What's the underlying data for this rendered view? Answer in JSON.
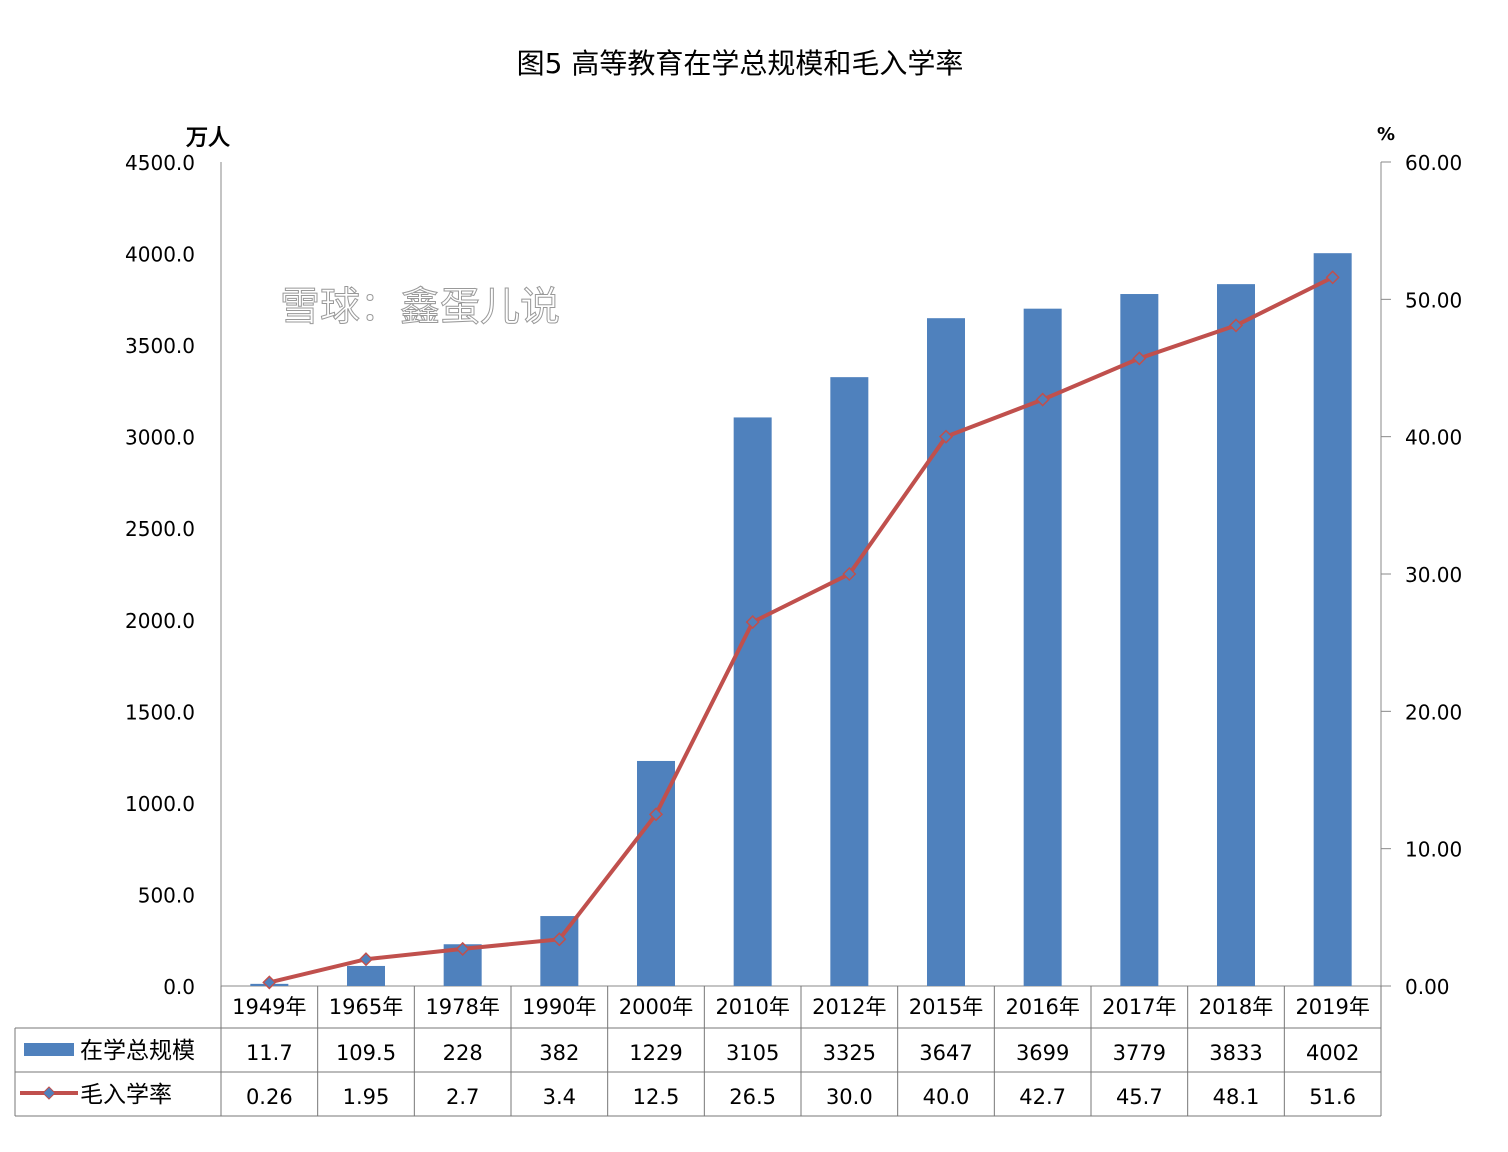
{
  "chart_data": {
    "type": "bar+line",
    "title": "图5  高等教育在学总规模和毛入学率",
    "left_axis": {
      "unit": "万人",
      "min": 0,
      "max": 4500,
      "step": 500,
      "ticks": [
        "0.0",
        "500.0",
        "1000.0",
        "1500.0",
        "2000.0",
        "2500.0",
        "3000.0",
        "3500.0",
        "4000.0",
        "4500.0"
      ]
    },
    "right_axis": {
      "unit": "%",
      "min": 0,
      "max": 60,
      "step": 10,
      "ticks": [
        "0.00",
        "10.00",
        "20.00",
        "30.00",
        "40.00",
        "50.00",
        "60.00"
      ]
    },
    "categories": [
      "1949年",
      "1965年",
      "1978年",
      "1990年",
      "2000年",
      "2010年",
      "2012年",
      "2015年",
      "2016年",
      "2017年",
      "2018年",
      "2019年"
    ],
    "series": [
      {
        "name": "在学总规模",
        "type": "bar",
        "axis": "left",
        "color": "#4f81bd",
        "values": [
          11.7,
          109.5,
          228,
          382,
          1229,
          3105,
          3325,
          3647,
          3699,
          3779,
          3833,
          4002
        ],
        "labels": [
          "11.7",
          "109.5",
          "228",
          "382",
          "1229",
          "3105",
          "3325",
          "3647",
          "3699",
          "3779",
          "3833",
          "4002"
        ]
      },
      {
        "name": "毛入学率",
        "type": "line",
        "axis": "right",
        "color": "#c0504d",
        "marker_color": "#4f81bd",
        "values": [
          0.26,
          1.95,
          2.7,
          3.4,
          12.5,
          26.5,
          30.0,
          40.0,
          42.7,
          45.7,
          48.1,
          51.6
        ],
        "labels": [
          "0.26",
          "1.95",
          "2.7",
          "3.4",
          "12.5",
          "26.5",
          "30.0",
          "40.0",
          "42.7",
          "45.7",
          "48.1",
          "51.6"
        ]
      }
    ],
    "data_table": true,
    "grid": false
  },
  "watermark": "雪球：鑫蛋儿说"
}
